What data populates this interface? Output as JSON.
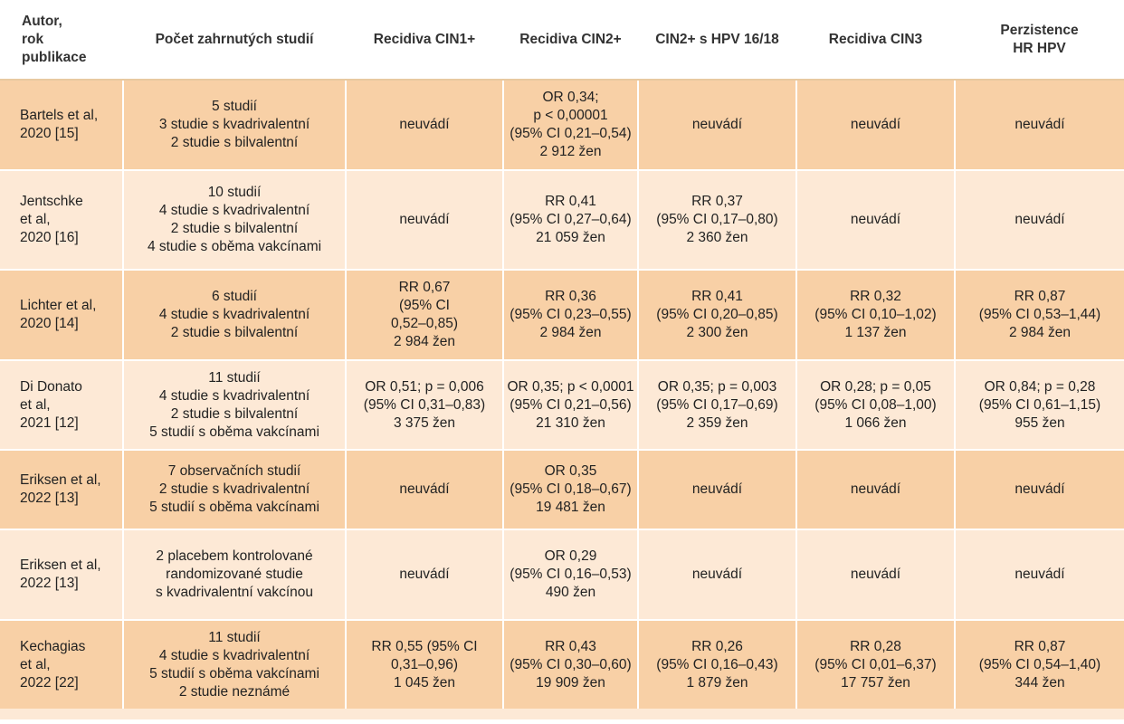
{
  "columns": [
    "Autor,\nrok\npublikace",
    "Počet zahrnutých studií",
    "Recidiva CIN1+",
    "Recidiva CIN2+",
    "CIN2+ s HPV 16/18",
    "Recidiva CIN3",
    "Perzistence\nHR HPV"
  ],
  "rows": [
    [
      "Bartels et al,\n2020 [15]",
      "5 studií\n3 studie s kvadrivalentní\n2 studie s bilvalentní",
      "neuvádí",
      "OR 0,34;\np < 0,00001\n(95% CI 0,21–0,54)\n2 912 žen",
      "neuvádí",
      "neuvádí",
      "neuvádí"
    ],
    [
      "Jentschke\net al,\n2020 [16]",
      "10 studií\n4 studie s kvadrivalentní\n2 studie s bilvalentní\n4 studie s oběma vakcínami",
      "neuvádí",
      "RR 0,41\n(95% CI 0,27–0,64)\n21 059 žen",
      "RR 0,37\n(95% CI 0,17–0,80)\n2 360 žen",
      "neuvádí",
      "neuvádí"
    ],
    [
      "Lichter et al,\n2020 [14]",
      "6 studií\n4 studie s kvadrivalentní\n2 studie s bilvalentní",
      "RR 0,67\n(95% CI\n0,52–0,85)\n2 984 žen",
      "RR 0,36\n(95% CI 0,23–0,55)\n2 984 žen",
      "RR 0,41\n(95% CI 0,20–0,85)\n2 300 žen",
      "RR 0,32\n(95% CI 0,10–1,02)\n1 137 žen",
      "RR 0,87\n(95% CI 0,53–1,44)\n2 984 žen"
    ],
    [
      "Di Donato\net al,\n2021 [12]",
      "11 studií\n4 studie s kvadrivalentní\n2 studie s bilvalentní\n5 studií s oběma vakcínami",
      "OR 0,51; p = 0,006\n(95% CI 0,31–0,83)\n3 375 žen",
      "OR 0,35; p < 0,0001\n(95% CI 0,21–0,56)\n21 310 žen",
      "OR 0,35; p = 0,003\n(95% CI 0,17–0,69)\n2 359 žen",
      "OR 0,28; p = 0,05\n(95% CI 0,08–1,00)\n1 066 žen",
      "OR 0,84; p = 0,28\n(95% CI 0,61–1,15)\n955 žen"
    ],
    [
      "Eriksen et al,\n2022 [13]",
      "7 observačních studií\n2 studie s kvadrivalentní\n5 studií s oběma vakcínami",
      "neuvádí",
      "OR 0,35\n(95% CI 0,18–0,67)\n19 481 žen",
      "neuvádí",
      "neuvádí",
      "neuvádí"
    ],
    [
      "Eriksen et al,\n2022 [13]",
      "2 placebem kontrolované\nrandomizované studie\ns kvadrivalentní vakcínou",
      "neuvádí",
      "OR 0,29\n(95% CI 0,16–0,53)\n490 žen",
      "neuvádí",
      "neuvádí",
      "neuvádí"
    ],
    [
      "Kechagias\net al,\n2022 [22]",
      "11 studií\n4 studie s kvadrivalentní\n5 studií s oběma vakcínami\n2 studie neznámé",
      "RR 0,55 (95% CI\n0,31–0,96)\n1 045 žen",
      "RR 0,43\n(95% CI 0,30–0,60)\n19 909 žen",
      "RR 0,26\n(95% CI 0,16–0,43)\n1 879 žen",
      "RR 0,28\n(95% CI 0,01–6,37)\n17 757 žen",
      "RR 0,87\n(95% CI 0,54–1,40)\n344 žen"
    ]
  ]
}
